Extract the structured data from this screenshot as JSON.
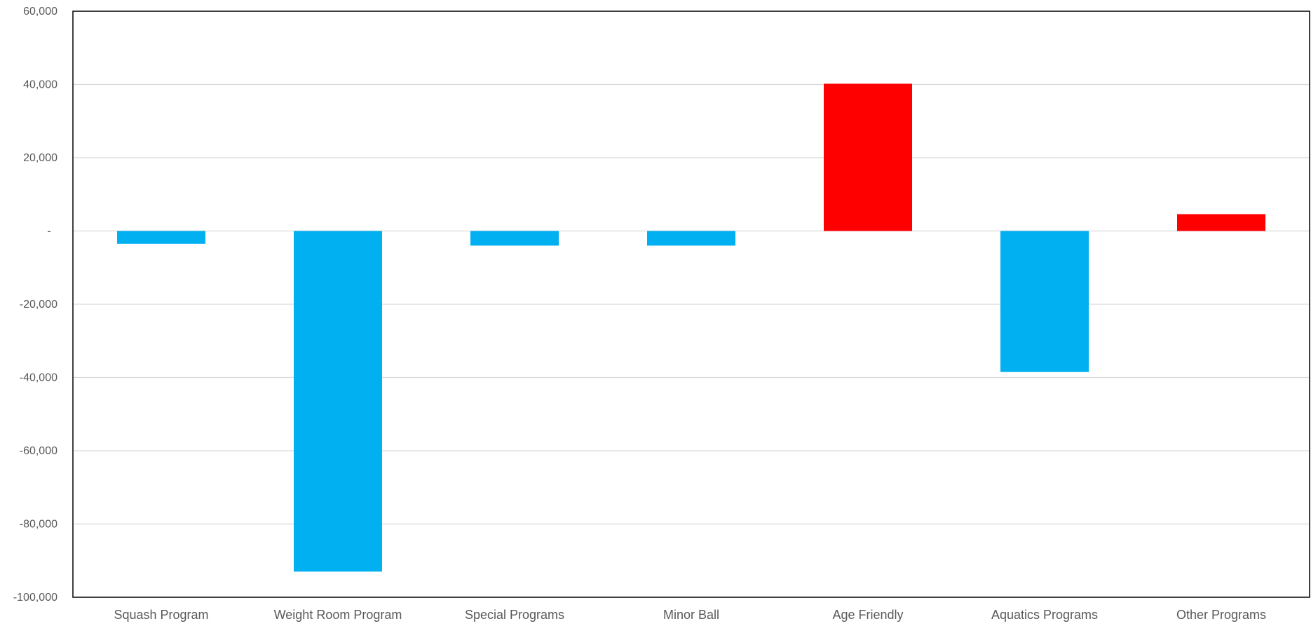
{
  "chart_data": {
    "type": "bar",
    "title": "",
    "xlabel": "",
    "ylabel": "",
    "categories": [
      "Squash Program",
      "Weight Room Program",
      "Special Programs",
      "Minor Ball",
      "Age Friendly",
      "Aquatics Programs",
      "Other Programs"
    ],
    "values": [
      -3500,
      -93000,
      -4000,
      -4000,
      40200,
      -38500,
      4600
    ],
    "ylim": [
      -100000,
      60000
    ],
    "yticks": [
      60000,
      40000,
      20000,
      0,
      -20000,
      -40000,
      -60000,
      -80000,
      -100000
    ],
    "ytick_labels": [
      "60,000",
      "40,000",
      "20,000",
      "-",
      "-20,000",
      "-40,000",
      "-60,000",
      "-80,000",
      "-100,000"
    ],
    "grid": true,
    "legend": "none",
    "colors": {
      "negative": "#00B0F0",
      "positive": "#FF0000",
      "grid": "#D9D9D9",
      "axis": "#000000",
      "text": "#595959"
    }
  }
}
